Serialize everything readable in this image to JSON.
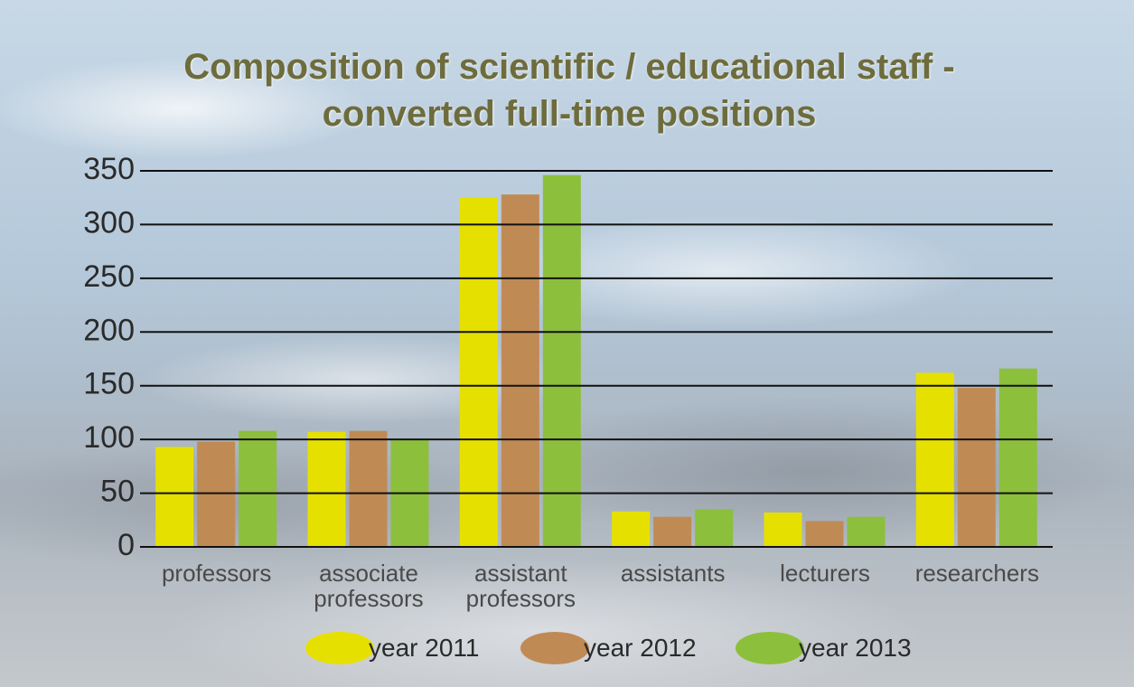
{
  "chart_data": {
    "type": "bar",
    "title": "Composition of scientific / educational staff - converted full-time positions",
    "categories": [
      "professors",
      "associate professors",
      "assistant professors",
      "assistants",
      "lecturers",
      "researchers"
    ],
    "series": [
      {
        "name": "year 2011",
        "color": "#e6e000",
        "values": [
          93,
          107,
          325,
          33,
          32,
          162
        ]
      },
      {
        "name": "year 2012",
        "color": "#c08a55",
        "values": [
          98,
          108,
          328,
          28,
          24,
          148
        ]
      },
      {
        "name": "year 2013",
        "color": "#8cbf3c",
        "values": [
          108,
          100,
          346,
          35,
          28,
          166
        ]
      }
    ],
    "ylim": [
      0,
      350
    ],
    "yticks": [
      0,
      50,
      100,
      150,
      200,
      250,
      300,
      350
    ],
    "grid": true
  }
}
